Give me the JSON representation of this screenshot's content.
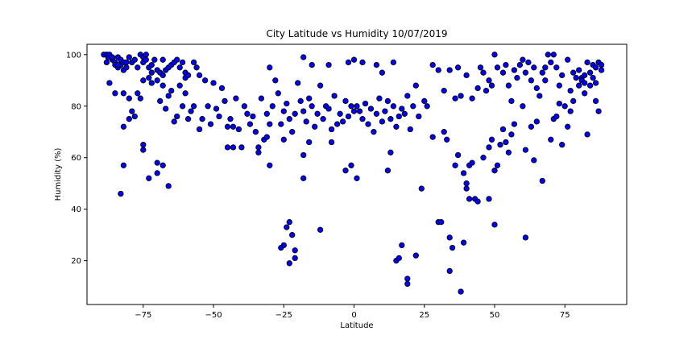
{
  "chart_data": {
    "type": "scatter",
    "title": "City Latitude vs Humidity 10/07/2019",
    "xlabel": "Latitude",
    "ylabel": "Humidity (%)",
    "xlim": [
      -95,
      97
    ],
    "ylim": [
      3,
      104
    ],
    "xticks": [
      -75,
      -50,
      -25,
      0,
      25,
      50,
      75
    ],
    "yticks": [
      20,
      40,
      60,
      80,
      100
    ],
    "grid": false,
    "colors": {
      "marker_fill": "#0000ff",
      "marker_edge": "#000000"
    },
    "series": [
      {
        "points": [
          [
            -89,
            100
          ],
          [
            -88,
            100
          ],
          [
            -87.5,
            99
          ],
          [
            -87,
            100
          ],
          [
            -86,
            98
          ],
          [
            -86,
            99
          ],
          [
            -85,
            97
          ],
          [
            -85,
            96
          ],
          [
            -84,
            99
          ],
          [
            -84,
            95
          ],
          [
            -83,
            98
          ],
          [
            -83,
            96
          ],
          [
            -82,
            97
          ],
          [
            -82,
            94
          ],
          [
            -81,
            97
          ],
          [
            -81,
            95
          ],
          [
            -80,
            99
          ],
          [
            -79,
            97
          ],
          [
            -78,
            98
          ],
          [
            -77,
            95
          ],
          [
            -76,
            100
          ],
          [
            -75,
            99
          ],
          [
            -75,
            97
          ],
          [
            -74,
            100
          ],
          [
            -74,
            98
          ],
          [
            -73,
            95
          ],
          [
            -72,
            96
          ],
          [
            -72,
            93
          ],
          [
            -71,
            98
          ],
          [
            -70,
            94
          ],
          [
            -69,
            93
          ],
          [
            -68,
            98
          ],
          [
            -68,
            92
          ],
          [
            -67,
            94
          ],
          [
            -66,
            95
          ],
          [
            -65,
            96
          ],
          [
            -64,
            97
          ],
          [
            -63,
            98
          ],
          [
            -62,
            95
          ],
          [
            -61,
            97
          ],
          [
            -60,
            93
          ],
          [
            -60,
            91
          ],
          [
            -59,
            92
          ],
          [
            -57,
            97
          ],
          [
            -56,
            95
          ],
          [
            -55,
            92
          ],
          [
            -88,
            97
          ],
          [
            -87,
            89
          ],
          [
            -85,
            85
          ],
          [
            -84,
            96
          ],
          [
            -82,
            85
          ],
          [
            -80,
            83
          ],
          [
            -79,
            78
          ],
          [
            -78,
            76
          ],
          [
            -77,
            85
          ],
          [
            -76,
            83
          ],
          [
            -75,
            90
          ],
          [
            -73,
            91
          ],
          [
            -72,
            89
          ],
          [
            -70,
            90
          ],
          [
            -69,
            82
          ],
          [
            -68,
            88
          ],
          [
            -67,
            79
          ],
          [
            -66,
            84
          ],
          [
            -65,
            86
          ],
          [
            -64,
            74
          ],
          [
            -63,
            76
          ],
          [
            -62,
            88
          ],
          [
            -61,
            80
          ],
          [
            -60,
            85
          ],
          [
            -59,
            75
          ],
          [
            -58,
            78
          ],
          [
            -57,
            80
          ],
          [
            -55,
            71
          ],
          [
            -54,
            75
          ],
          [
            -53,
            90
          ],
          [
            -52,
            80
          ],
          [
            -51,
            73
          ],
          [
            -50,
            89
          ],
          [
            -49,
            79
          ],
          [
            -48,
            76
          ],
          [
            -47,
            87
          ],
          [
            -46,
            82
          ],
          [
            -45,
            64
          ],
          [
            -44,
            75
          ],
          [
            -43,
            72
          ],
          [
            -42,
            83
          ],
          [
            -41,
            71
          ],
          [
            -40,
            64
          ],
          [
            -39,
            80
          ],
          [
            -38,
            77
          ],
          [
            -37,
            73
          ],
          [
            -36,
            76
          ],
          [
            -35,
            70
          ],
          [
            -34,
            64
          ],
          [
            -33,
            83
          ],
          [
            -32,
            67
          ],
          [
            -31,
            77
          ],
          [
            -30,
            73
          ],
          [
            -29,
            80
          ],
          [
            -28,
            90
          ],
          [
            -27,
            85
          ],
          [
            -26,
            73
          ],
          [
            -25,
            78
          ],
          [
            -24,
            81
          ],
          [
            -23,
            75
          ],
          [
            -22,
            70
          ],
          [
            -21,
            77
          ],
          [
            -20,
            89
          ],
          [
            -19,
            82
          ],
          [
            -18,
            78
          ],
          [
            -17,
            74
          ],
          [
            -16,
            83
          ],
          [
            -15,
            80
          ],
          [
            -14,
            72
          ],
          [
            -13,
            77
          ],
          [
            -12,
            88
          ],
          [
            -11,
            75
          ],
          [
            -10,
            80
          ],
          [
            -9,
            79
          ],
          [
            -8,
            71
          ],
          [
            -7,
            84
          ],
          [
            -6,
            73
          ],
          [
            -5,
            77
          ],
          [
            -4,
            74
          ],
          [
            -3,
            82
          ],
          [
            -2,
            76
          ],
          [
            -1,
            80
          ],
          [
            0,
            78
          ],
          [
            1,
            80
          ],
          [
            2,
            78
          ],
          [
            3,
            75
          ],
          [
            4,
            81
          ],
          [
            5,
            73
          ],
          [
            6,
            79
          ],
          [
            7,
            70
          ],
          [
            8,
            77
          ],
          [
            9,
            83
          ],
          [
            10,
            74
          ],
          [
            11,
            78
          ],
          [
            12,
            82
          ],
          [
            13,
            75
          ],
          [
            14,
            80
          ],
          [
            15,
            72
          ],
          [
            16,
            76
          ],
          [
            17,
            79
          ],
          [
            18,
            77
          ],
          [
            19,
            84
          ],
          [
            20,
            71
          ],
          [
            21,
            80
          ],
          [
            22,
            88
          ],
          [
            23,
            76
          ],
          [
            25,
            82
          ],
          [
            26,
            80
          ],
          [
            -82,
            72
          ],
          [
            -82,
            57
          ],
          [
            -83,
            46
          ],
          [
            -80,
            75
          ],
          [
            -75,
            65
          ],
          [
            -75,
            63
          ],
          [
            -73,
            52
          ],
          [
            -70,
            54
          ],
          [
            -70,
            58
          ],
          [
            -68,
            57
          ],
          [
            -66,
            49
          ],
          [
            -45,
            72
          ],
          [
            -43,
            64
          ],
          [
            -34,
            62
          ],
          [
            -31,
            68
          ],
          [
            -30,
            57
          ],
          [
            -25,
            67
          ],
          [
            -24,
            33
          ],
          [
            -23,
            35
          ],
          [
            -22,
            30
          ],
          [
            -21,
            24
          ],
          [
            -21,
            21
          ],
          [
            -23,
            19
          ],
          [
            -25,
            26
          ],
          [
            -26,
            25
          ],
          [
            -18,
            52
          ],
          [
            -18,
            61
          ],
          [
            -12,
            32
          ],
          [
            -16,
            66
          ],
          [
            -8,
            66
          ],
          [
            -3,
            55
          ],
          [
            -1,
            57
          ],
          [
            1,
            52
          ],
          [
            12,
            55
          ],
          [
            13,
            62
          ],
          [
            15,
            20
          ],
          [
            16,
            21
          ],
          [
            17,
            26
          ],
          [
            19,
            13
          ],
          [
            19,
            11
          ],
          [
            22,
            22
          ],
          [
            24,
            48
          ],
          [
            28,
            68
          ],
          [
            30,
            35
          ],
          [
            31,
            35
          ],
          [
            32,
            70
          ],
          [
            33,
            67
          ],
          [
            34,
            29
          ],
          [
            34,
            16
          ],
          [
            35,
            25
          ],
          [
            36,
            57
          ],
          [
            37,
            61
          ],
          [
            38,
            8
          ],
          [
            39,
            54
          ],
          [
            39,
            27
          ],
          [
            40,
            48
          ],
          [
            40,
            50
          ],
          [
            41,
            44
          ],
          [
            41,
            57
          ],
          [
            42,
            58
          ],
          [
            43,
            44
          ],
          [
            44,
            43
          ],
          [
            46,
            60
          ],
          [
            47,
            86
          ],
          [
            48,
            44
          ],
          [
            48,
            64
          ],
          [
            49,
            67
          ],
          [
            50,
            55
          ],
          [
            50,
            34
          ],
          [
            51,
            57
          ],
          [
            52,
            65
          ],
          [
            53,
            71
          ],
          [
            54,
            66
          ],
          [
            55,
            62
          ],
          [
            56,
            69
          ],
          [
            57,
            73
          ],
          [
            60,
            80
          ],
          [
            61,
            29
          ],
          [
            61,
            63
          ],
          [
            63,
            72
          ],
          [
            64,
            59
          ],
          [
            65,
            74
          ],
          [
            67,
            51
          ],
          [
            68,
            95
          ],
          [
            70,
            67
          ],
          [
            71,
            75
          ],
          [
            72,
            76
          ],
          [
            73,
            81
          ],
          [
            74,
            65
          ],
          [
            76,
            72
          ],
          [
            77,
            78
          ],
          [
            78,
            82
          ],
          [
            80,
            88
          ],
          [
            81,
            91
          ],
          [
            82,
            85
          ],
          [
            -30,
            95
          ],
          [
            -18,
            99
          ],
          [
            -15,
            96
          ],
          [
            -9,
            96
          ],
          [
            -2,
            97
          ],
          [
            0,
            98
          ],
          [
            3,
            97
          ],
          [
            8,
            96
          ],
          [
            10,
            93
          ],
          [
            14,
            97
          ],
          [
            28,
            96
          ],
          [
            30,
            94
          ],
          [
            32,
            86
          ],
          [
            34,
            94
          ],
          [
            36,
            83
          ],
          [
            37,
            95
          ],
          [
            38,
            84
          ],
          [
            40,
            92
          ],
          [
            42,
            83
          ],
          [
            44,
            87
          ],
          [
            45,
            95
          ],
          [
            46,
            93
          ],
          [
            48,
            90
          ],
          [
            49,
            88
          ],
          [
            50,
            100
          ],
          [
            51,
            95
          ],
          [
            53,
            93
          ],
          [
            54,
            96
          ],
          [
            55,
            88
          ],
          [
            56,
            82
          ],
          [
            57,
            94
          ],
          [
            58,
            91
          ],
          [
            59,
            96
          ],
          [
            60,
            98
          ],
          [
            61,
            93
          ],
          [
            62,
            97
          ],
          [
            63,
            90
          ],
          [
            64,
            95
          ],
          [
            65,
            87
          ],
          [
            66,
            84
          ],
          [
            67,
            93
          ],
          [
            68,
            90
          ],
          [
            69,
            100
          ],
          [
            70,
            97
          ],
          [
            71,
            100
          ],
          [
            72,
            95
          ],
          [
            73,
            88
          ],
          [
            74,
            92
          ],
          [
            75,
            80
          ],
          [
            76,
            98
          ],
          [
            77,
            86
          ],
          [
            78,
            93
          ],
          [
            79,
            91
          ],
          [
            80,
            94
          ],
          [
            81,
            90
          ],
          [
            82,
            92
          ],
          [
            83,
            97
          ],
          [
            84,
            93
          ],
          [
            85,
            96
          ],
          [
            86,
            95
          ],
          [
            87,
            97
          ],
          [
            88,
            96
          ],
          [
            84,
            88
          ],
          [
            85,
            91
          ],
          [
            86,
            89
          ],
          [
            83,
            69
          ],
          [
            87,
            78
          ],
          [
            88,
            94
          ],
          [
            86,
            82
          ],
          [
            82,
            89
          ]
        ]
      }
    ]
  }
}
